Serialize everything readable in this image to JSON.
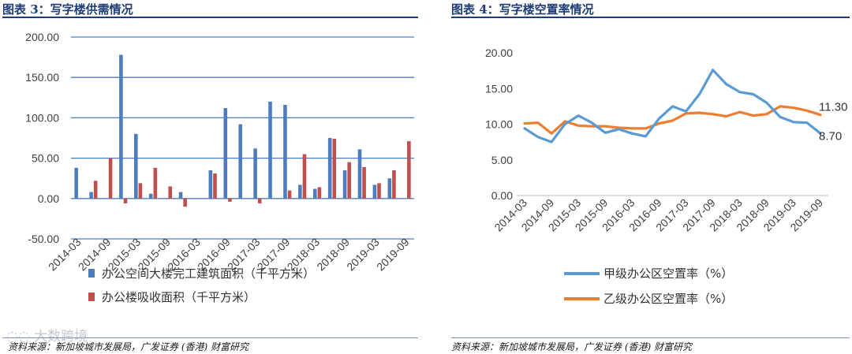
{
  "left_panel": {
    "title": "图表 3：写字楼供需情况",
    "source": "资料来源：新加坡城市发展局，广发证券 (香港) 财富研究"
  },
  "right_panel": {
    "title": "图表 4：写字楼空置率情况",
    "source": "资料来源：新加坡城市发展局，广发证券 (香港) 财富研究"
  },
  "watermark": "大数跨境",
  "colors": {
    "header": "#1f3c78",
    "blue": "#4e7dbf",
    "red": "#c0504d",
    "line_blue": "#5b9bd5",
    "line_orange": "#ed7d31"
  },
  "chart_data": [
    {
      "type": "bar",
      "title": "",
      "ylim": [
        -50,
        200
      ],
      "yticks": [
        "-50.00",
        "0.00",
        "50.00",
        "100.00",
        "150.00",
        "200.00"
      ],
      "grid": true,
      "legend_position": "bottom",
      "xtick_labels": [
        "2014-03",
        "2014-09",
        "2015-03",
        "2015-09",
        "2016-03",
        "2016-09",
        "2017-03",
        "2017-09",
        "2018-03",
        "2018-09",
        "2019-03",
        "2019-09"
      ],
      "categories": [
        "2014-03",
        "2014-06",
        "2014-09",
        "2014-12",
        "2015-03",
        "2015-06",
        "2015-09",
        "2015-12",
        "2016-03",
        "2016-06",
        "2016-09",
        "2016-12",
        "2017-03",
        "2017-06",
        "2017-09",
        "2017-12",
        "2018-03",
        "2018-06",
        "2018-09",
        "2018-12",
        "2019-03",
        "2019-06",
        "2019-09"
      ],
      "series": [
        {
          "name": "办公空间大楼完工建筑面积（千平方米）",
          "color": "#4e7dbf",
          "values": [
            38,
            8,
            0,
            178,
            80,
            6,
            0,
            8,
            0,
            35,
            112,
            92,
            62,
            120,
            116,
            17,
            12,
            75,
            35,
            61,
            17,
            25,
            0
          ]
        },
        {
          "name": "办公楼吸收面积（千平方米）",
          "color": "#c0504d",
          "values": [
            0,
            22,
            50,
            -6,
            19,
            38,
            15,
            -10,
            0,
            31,
            -4,
            0,
            -6,
            0,
            10,
            55,
            14,
            74,
            45,
            39,
            19,
            35,
            71
          ]
        }
      ]
    },
    {
      "type": "line",
      "title": "",
      "ylim": [
        0,
        20
      ],
      "yticks": [
        "0.00",
        "5.00",
        "10.00",
        "15.00",
        "20.00"
      ],
      "grid": false,
      "legend_position": "bottom",
      "xtick_labels": [
        "2014-03",
        "2014-09",
        "2015-03",
        "2015-09",
        "2016-03",
        "2016-09",
        "2017-03",
        "2017-09",
        "2018-03",
        "2018-09",
        "2019-03",
        "2019-09"
      ],
      "x": [
        "2014-03",
        "2014-06",
        "2014-09",
        "2014-12",
        "2015-03",
        "2015-06",
        "2015-09",
        "2015-12",
        "2016-03",
        "2016-06",
        "2016-09",
        "2016-12",
        "2017-03",
        "2017-06",
        "2017-09",
        "2017-12",
        "2018-03",
        "2018-06",
        "2018-09",
        "2018-12",
        "2019-03",
        "2019-06",
        "2019-09"
      ],
      "series": [
        {
          "name": "甲级办公区空置率（%）",
          "color": "#5b9bd5",
          "end_label": "8.70",
          "values": [
            9.4,
            8.2,
            7.5,
            10.0,
            11.2,
            10.2,
            8.8,
            9.3,
            8.7,
            8.3,
            10.8,
            12.5,
            11.8,
            14.2,
            17.6,
            15.6,
            14.5,
            14.2,
            13.0,
            11.0,
            10.3,
            10.2,
            8.7
          ]
        },
        {
          "name": "乙级办公区空置率（%）",
          "color": "#ed7d31",
          "end_label": "11.30",
          "values": [
            10.1,
            10.2,
            8.7,
            10.4,
            9.8,
            9.7,
            9.7,
            9.5,
            9.4,
            9.4,
            10.1,
            10.5,
            11.5,
            11.6,
            11.4,
            11.1,
            11.7,
            11.2,
            11.4,
            12.5,
            12.3,
            11.9,
            11.3
          ]
        }
      ]
    }
  ]
}
